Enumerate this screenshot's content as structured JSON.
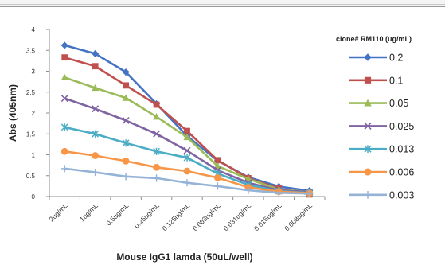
{
  "chart_data": {
    "type": "line",
    "title": "",
    "xlabel": "Mouse IgG1 lamda (50uL/well)",
    "ylabel": "Abs (405nm)",
    "ylim": [
      0,
      4
    ],
    "yticks": [
      "0",
      "0.5",
      "1",
      "1.5",
      "2",
      "2.5",
      "3",
      "3.5",
      "4"
    ],
    "categories": [
      "2ug/mL",
      "1ug/mL",
      "0.5ug/mL",
      "0.25ug/mL",
      "0.125ug/mL",
      "0.063ug/mL",
      "0.031ug/mL",
      "0.016ug/mL",
      "0.008ug/mL"
    ],
    "legend_title": "clone# RM110 (ug/mL)",
    "legend_position": "right",
    "grid": false,
    "series": [
      {
        "name": "0.2",
        "color": "#4472C4",
        "marker": "diamond",
        "values": [
          3.62,
          3.42,
          2.98,
          2.22,
          1.45,
          0.86,
          0.46,
          0.24,
          0.14
        ]
      },
      {
        "name": "0.1",
        "color": "#C0504D",
        "marker": "square",
        "values": [
          3.33,
          3.12,
          2.66,
          2.2,
          1.57,
          0.87,
          0.44,
          0.19,
          0.05
        ]
      },
      {
        "name": "0.05",
        "color": "#9BBB59",
        "marker": "triangle",
        "values": [
          2.85,
          2.6,
          2.36,
          1.91,
          1.42,
          0.73,
          0.42,
          0.17,
          0.11
        ]
      },
      {
        "name": "0.025",
        "color": "#8064A2",
        "marker": "x",
        "values": [
          2.35,
          2.1,
          1.82,
          1.5,
          1.1,
          0.63,
          0.33,
          0.15,
          0.11
        ]
      },
      {
        "name": "0.013",
        "color": "#4BACC6",
        "marker": "star",
        "values": [
          1.66,
          1.5,
          1.28,
          1.08,
          0.93,
          0.55,
          0.28,
          0.13,
          0.09
        ]
      },
      {
        "name": "0.006",
        "color": "#F79646",
        "marker": "circle",
        "values": [
          1.08,
          0.98,
          0.85,
          0.7,
          0.61,
          0.45,
          0.22,
          0.12,
          0.08
        ]
      },
      {
        "name": "0.003",
        "color": "#95B3D7",
        "marker": "plus",
        "values": [
          0.67,
          0.58,
          0.48,
          0.44,
          0.33,
          0.25,
          0.15,
          0.09,
          0.07
        ]
      }
    ]
  }
}
